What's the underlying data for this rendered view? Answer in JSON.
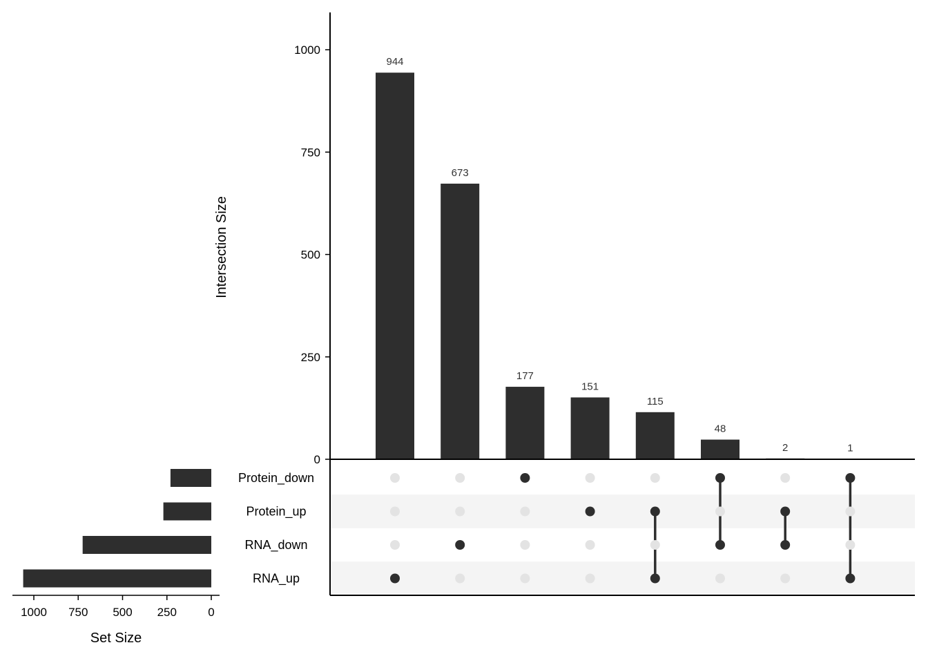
{
  "chart_data": {
    "type": "upset",
    "ylabel": "Intersection Size",
    "set_size_label": "Set Size",
    "ylim": [
      0,
      1000
    ],
    "y_ticks": [
      0,
      250,
      500,
      750,
      1000
    ],
    "set_size_ticks": [
      1000,
      750,
      500,
      250,
      0
    ],
    "sets": [
      {
        "name": "Protein_down",
        "size": 230
      },
      {
        "name": "Protein_up",
        "size": 270
      },
      {
        "name": "RNA_down",
        "size": 725
      },
      {
        "name": "RNA_up",
        "size": 1060
      }
    ],
    "intersections": [
      {
        "value": 944,
        "label": "944",
        "members": [
          "RNA_up"
        ]
      },
      {
        "value": 673,
        "label": "673",
        "members": [
          "RNA_down"
        ]
      },
      {
        "value": 177,
        "label": "177",
        "members": [
          "Protein_down"
        ]
      },
      {
        "value": 151,
        "label": "151",
        "members": [
          "Protein_up"
        ]
      },
      {
        "value": 115,
        "label": "115",
        "members": [
          "Protein_up",
          "RNA_up"
        ]
      },
      {
        "value": 48,
        "label": "48",
        "members": [
          "Protein_down",
          "RNA_down"
        ]
      },
      {
        "value": 2,
        "label": "2",
        "members": [
          "Protein_up",
          "RNA_down"
        ]
      },
      {
        "value": 1,
        "label": "1",
        "members": [
          "Protein_down",
          "RNA_up"
        ]
      }
    ],
    "colors": {
      "bar": "#2e2e2e",
      "dot_active": "#2e2e2e",
      "dot_inactive": "#e3e3e3",
      "stripe": "#f4f4f4"
    },
    "grid": false
  }
}
